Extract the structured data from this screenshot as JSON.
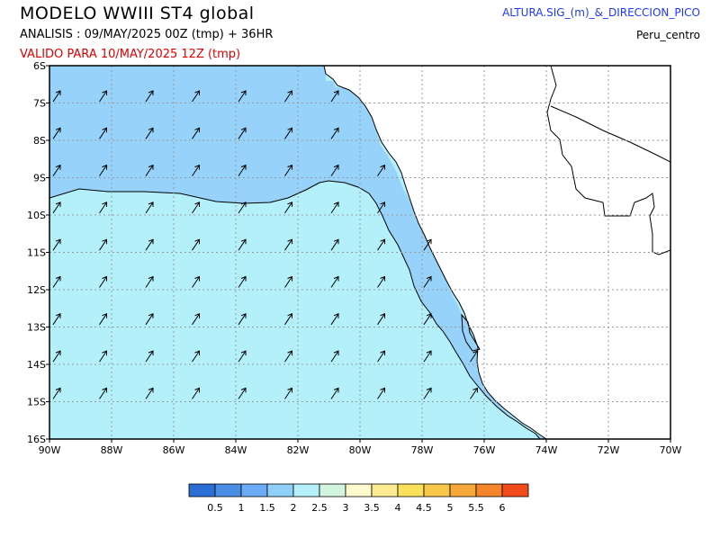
{
  "header": {
    "title": "MODELO WWIII ST4 global",
    "analysis": "ANALISIS : 09/MAY/2025 00Z  (tmp) + 36HR",
    "valid": "VALIDO PARA  10/MAY/2025 12Z  (tmp)",
    "product": "ALTURA.SIG_(m)_&_DIRECCION_PICO",
    "region": "Peru_centro"
  },
  "map": {
    "lat_labels": [
      "6S",
      "7S",
      "8S",
      "9S",
      "10S",
      "11S",
      "12S",
      "13S",
      "14S",
      "15S",
      "16S"
    ],
    "lon_labels": [
      "90W",
      "88W",
      "86W",
      "84W",
      "82W",
      "80W",
      "78W",
      "76W",
      "74W",
      "72W",
      "70W"
    ],
    "extent": {
      "lon_min": -90,
      "lon_max": -70,
      "lat_min": -16,
      "lat_max": -6
    },
    "colors": {
      "ocean_low": "#b4f0fa",
      "ocean_mid": "#96d2fa",
      "land": "#ffffff",
      "frame": "#000000",
      "grid": "#9a9a9a"
    },
    "wave_direction": "arrows-toward-northeast"
  },
  "colorbar": {
    "colors": [
      "#2b6fd6",
      "#4a8ee6",
      "#6cabf5",
      "#8fd0fb",
      "#b4f0fa",
      "#d2f5e0",
      "#fffacd",
      "#fdeb91",
      "#fbe05c",
      "#f8c84a",
      "#f6a93a",
      "#f4852a",
      "#f24a1a"
    ],
    "labels": [
      "0.5",
      "1",
      "1.5",
      "2",
      "2.5",
      "3",
      "3.5",
      "4",
      "4.5",
      "5",
      "5.5",
      "6"
    ]
  }
}
